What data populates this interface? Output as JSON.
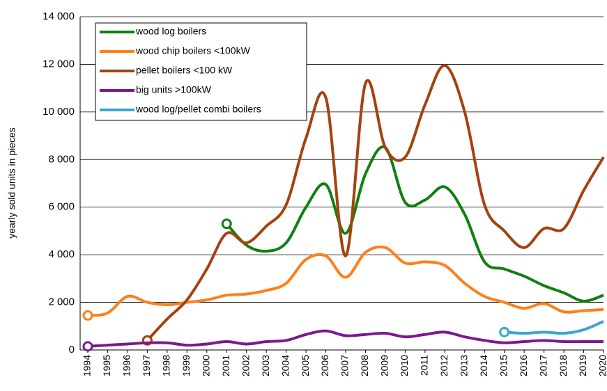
{
  "chart_data": {
    "type": "line",
    "y_label": "yearly sold units in pieces",
    "categories": [
      "1994",
      "1995",
      "1996",
      "1997",
      "1998",
      "1999",
      "2000",
      "2001",
      "2002",
      "2003",
      "2004",
      "2005",
      "2006",
      "2007",
      "2008",
      "2009",
      "2010",
      "2011",
      "2012",
      "2013",
      "2014",
      "2015",
      "2016",
      "2017",
      "2018",
      "2019",
      "2020"
    ],
    "ylim": [
      0,
      14000
    ],
    "yticks": [
      0,
      {
        "value": 2000,
        "label": "2 000"
      },
      {
        "value": 4000,
        "label": "4 000"
      },
      {
        "value": 6000,
        "label": "6 000"
      },
      {
        "value": 8000,
        "label": "8 000"
      },
      {
        "value": 10000,
        "label": "10 000"
      },
      {
        "value": 12000,
        "label": "12 000"
      },
      {
        "value": 14000,
        "label": "14 000"
      }
    ],
    "grid": true,
    "legend": "top-left",
    "series": [
      {
        "name": "wood log boilers",
        "color": "#108010",
        "values": [
          null,
          null,
          null,
          null,
          null,
          null,
          null,
          5300,
          4400,
          4150,
          4500,
          6000,
          6950,
          4900,
          7400,
          8500,
          6200,
          6300,
          6850,
          5700,
          3700,
          3400,
          3100,
          2700,
          2400,
          2050,
          2300
        ]
      },
      {
        "name": "wood chip boilers <100kW",
        "color": "#ff7f1a",
        "values": [
          1450,
          1550,
          2250,
          2000,
          1900,
          2000,
          2100,
          2300,
          2350,
          2500,
          2800,
          3800,
          3950,
          3050,
          4100,
          4300,
          3650,
          3700,
          3550,
          2800,
          2250,
          2000,
          1750,
          1950,
          1600,
          1650,
          1700
        ]
      },
      {
        "name": "pellet boilers <100 kW",
        "color": "#a5420e",
        "values": [
          null,
          null,
          null,
          400,
          1300,
          2100,
          3400,
          4900,
          4500,
          5200,
          6100,
          8900,
          10600,
          3950,
          11200,
          8500,
          8100,
          10300,
          11950,
          10000,
          6100,
          5000,
          4300,
          5100,
          5100,
          6700,
          8100
        ]
      },
      {
        "name": "big units >100kW",
        "color": "#7a1a8c",
        "values": [
          150,
          200,
          250,
          300,
          300,
          200,
          250,
          350,
          250,
          350,
          400,
          650,
          800,
          600,
          650,
          700,
          550,
          650,
          750,
          550,
          400,
          300,
          350,
          400,
          350,
          350,
          350
        ]
      },
      {
        "name": "wood log/pellet combi boilers",
        "color": "#3aa6cf",
        "values": [
          null,
          null,
          null,
          null,
          null,
          null,
          null,
          null,
          null,
          null,
          null,
          null,
          null,
          null,
          null,
          null,
          null,
          null,
          null,
          null,
          null,
          750,
          700,
          750,
          700,
          850,
          1200
        ]
      }
    ]
  }
}
